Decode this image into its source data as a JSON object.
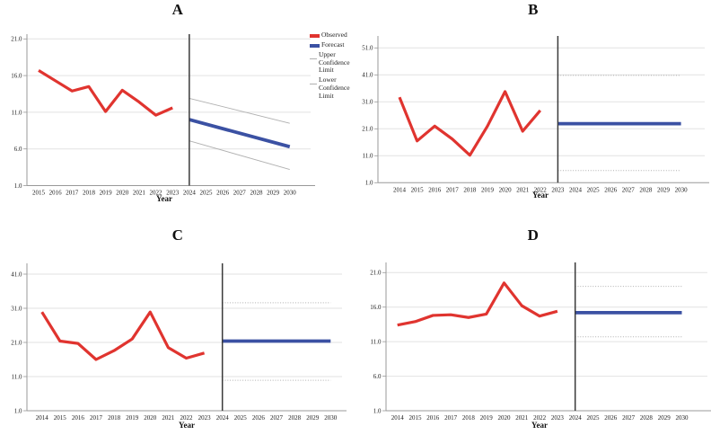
{
  "figure": {
    "background": "#ffffff",
    "legend": {
      "items": [
        {
          "name": "Observed",
          "swatch": "bar",
          "color": "#e0342f"
        },
        {
          "name": "Forecast",
          "swatch": "bar",
          "color": "#3b51a3"
        },
        {
          "name": "Upper Confidence Limit",
          "swatch": "line",
          "color": "#b0b0b0"
        },
        {
          "name": "Lower Confidence Limit",
          "swatch": "line",
          "color": "#b0b0b0"
        }
      ]
    },
    "colors": {
      "observed": "#e0342f",
      "forecast": "#3b51a3",
      "confidence_limit": "#b0b0b0",
      "gridline": "#e2e2e2",
      "axis": "#999999",
      "divider": "#3a3a3a",
      "text": "#1a1a1a"
    }
  },
  "chart_data": [
    {
      "panel": "A",
      "type": "line",
      "title": "A",
      "xlabel": "Year",
      "x_ticks": [
        2015,
        2016,
        2017,
        2018,
        2019,
        2020,
        2021,
        2022,
        2023,
        2024,
        2025,
        2026,
        2027,
        2028,
        2029,
        2030
      ],
      "y_ticks": [
        {
          "value": 1,
          "label": "1.0"
        },
        {
          "value": 6,
          "label": "6.0"
        },
        {
          "value": 11,
          "label": "11.0"
        },
        {
          "value": 16,
          "label": "16.0"
        },
        {
          "value": 21,
          "label": "21.0"
        }
      ],
      "ylim": [
        1,
        21
      ],
      "divider_year": 2024,
      "series": [
        {
          "name": "Observed",
          "role": "observed",
          "x": [
            2015,
            2016,
            2017,
            2018,
            2019,
            2020,
            2021,
            2022,
            2023
          ],
          "values": [
            16.7,
            15.3,
            13.9,
            14.5,
            11.1,
            14.0,
            12.4,
            10.6,
            11.6
          ]
        },
        {
          "name": "Forecast",
          "role": "forecast",
          "x": [
            2024,
            2030
          ],
          "values": [
            10.0,
            6.3
          ]
        },
        {
          "name": "Upper Confidence Limit",
          "role": "upper_cl",
          "x": [
            2024,
            2030
          ],
          "values": [
            12.9,
            9.5
          ]
        },
        {
          "name": "Lower Confidence Limit",
          "role": "lower_cl",
          "x": [
            2024,
            2030
          ],
          "values": [
            7.1,
            3.2
          ]
        }
      ]
    },
    {
      "panel": "B",
      "type": "line",
      "title": "B",
      "xlabel": "Year",
      "x_ticks": [
        2014,
        2015,
        2016,
        2017,
        2018,
        2019,
        2020,
        2021,
        2022,
        2023,
        2024,
        2025,
        2026,
        2027,
        2028,
        2029,
        2030
      ],
      "y_ticks": [
        {
          "value": 1,
          "label": "1.0"
        },
        {
          "value": 11,
          "label": "11.0"
        },
        {
          "value": 21,
          "label": "21.0"
        },
        {
          "value": 31,
          "label": "31.0"
        },
        {
          "value": 41,
          "label": "41.0"
        },
        {
          "value": 51,
          "label": "51.0"
        }
      ],
      "ylim": [
        1,
        51
      ],
      "divider_year": 2023,
      "series": [
        {
          "name": "Observed",
          "role": "observed",
          "x": [
            2014,
            2015,
            2016,
            2017,
            2018,
            2019,
            2020,
            2021,
            2022
          ],
          "values": [
            32.7,
            16.5,
            22.0,
            17.2,
            11.2,
            22.0,
            34.8,
            20.1,
            27.8
          ]
        },
        {
          "name": "Forecast",
          "role": "forecast",
          "x": [
            2023,
            2030
          ],
          "values": [
            22.9,
            22.9
          ]
        },
        {
          "name": "Upper Confidence Limit",
          "role": "upper_cl",
          "x": [
            2023,
            2030
          ],
          "values": [
            40.8,
            40.8
          ]
        },
        {
          "name": "Lower Confidence Limit",
          "role": "lower_cl",
          "x": [
            2023,
            2030
          ],
          "values": [
            5.5,
            5.5
          ]
        }
      ]
    },
    {
      "panel": "C",
      "type": "line",
      "title": "C",
      "xlabel": "Year",
      "x_ticks": [
        2014,
        2015,
        2016,
        2017,
        2018,
        2019,
        2020,
        2021,
        2022,
        2023,
        2024,
        2025,
        2026,
        2027,
        2028,
        2029,
        2030
      ],
      "y_ticks": [
        {
          "value": 1,
          "label": "1.0"
        },
        {
          "value": 11,
          "label": "11.0"
        },
        {
          "value": 21,
          "label": "21.0"
        },
        {
          "value": 31,
          "label": "31.0"
        },
        {
          "value": 41,
          "label": "41.0"
        }
      ],
      "ylim": [
        1,
        41
      ],
      "divider_year": 2024,
      "series": [
        {
          "name": "Observed",
          "role": "observed",
          "x": [
            2014,
            2015,
            2016,
            2017,
            2018,
            2019,
            2020,
            2021,
            2022,
            2023
          ],
          "values": [
            29.9,
            21.4,
            20.7,
            16.0,
            18.6,
            22.0,
            29.9,
            19.5,
            16.4,
            17.9
          ]
        },
        {
          "name": "Forecast",
          "role": "forecast",
          "x": [
            2024,
            2030
          ],
          "values": [
            21.4,
            21.4
          ]
        },
        {
          "name": "Upper Confidence Limit",
          "role": "upper_cl",
          "x": [
            2024,
            2030
          ],
          "values": [
            32.6,
            32.6
          ]
        },
        {
          "name": "Lower Confidence Limit",
          "role": "lower_cl",
          "x": [
            2024,
            2030
          ],
          "values": [
            9.9,
            9.9
          ]
        }
      ]
    },
    {
      "panel": "D",
      "type": "line",
      "title": "D",
      "xlabel": "Year",
      "x_ticks": [
        2014,
        2015,
        2016,
        2017,
        2018,
        2019,
        2020,
        2021,
        2022,
        2023,
        2024,
        2025,
        2026,
        2027,
        2028,
        2029,
        2030
      ],
      "y_ticks": [
        {
          "value": 1,
          "label": "1.0"
        },
        {
          "value": 6,
          "label": "6.0"
        },
        {
          "value": 11,
          "label": "11.0"
        },
        {
          "value": 16,
          "label": "16.0"
        },
        {
          "value": 21,
          "label": "21.0"
        }
      ],
      "ylim": [
        1,
        21
      ],
      "divider_year": 2024,
      "series": [
        {
          "name": "Observed",
          "role": "observed",
          "x": [
            2014,
            2015,
            2016,
            2017,
            2018,
            2019,
            2020,
            2021,
            2022,
            2023
          ],
          "values": [
            13.4,
            13.9,
            14.8,
            14.9,
            14.5,
            15.0,
            19.5,
            16.2,
            14.7,
            15.4
          ]
        },
        {
          "name": "Forecast",
          "role": "forecast",
          "x": [
            2024,
            2030
          ],
          "values": [
            15.2,
            15.2
          ]
        },
        {
          "name": "Upper Confidence Limit",
          "role": "upper_cl",
          "x": [
            2024,
            2030
          ],
          "values": [
            19.0,
            19.0
          ]
        },
        {
          "name": "Lower Confidence Limit",
          "role": "lower_cl",
          "x": [
            2024,
            2030
          ],
          "values": [
            11.7,
            11.7
          ]
        }
      ]
    }
  ]
}
